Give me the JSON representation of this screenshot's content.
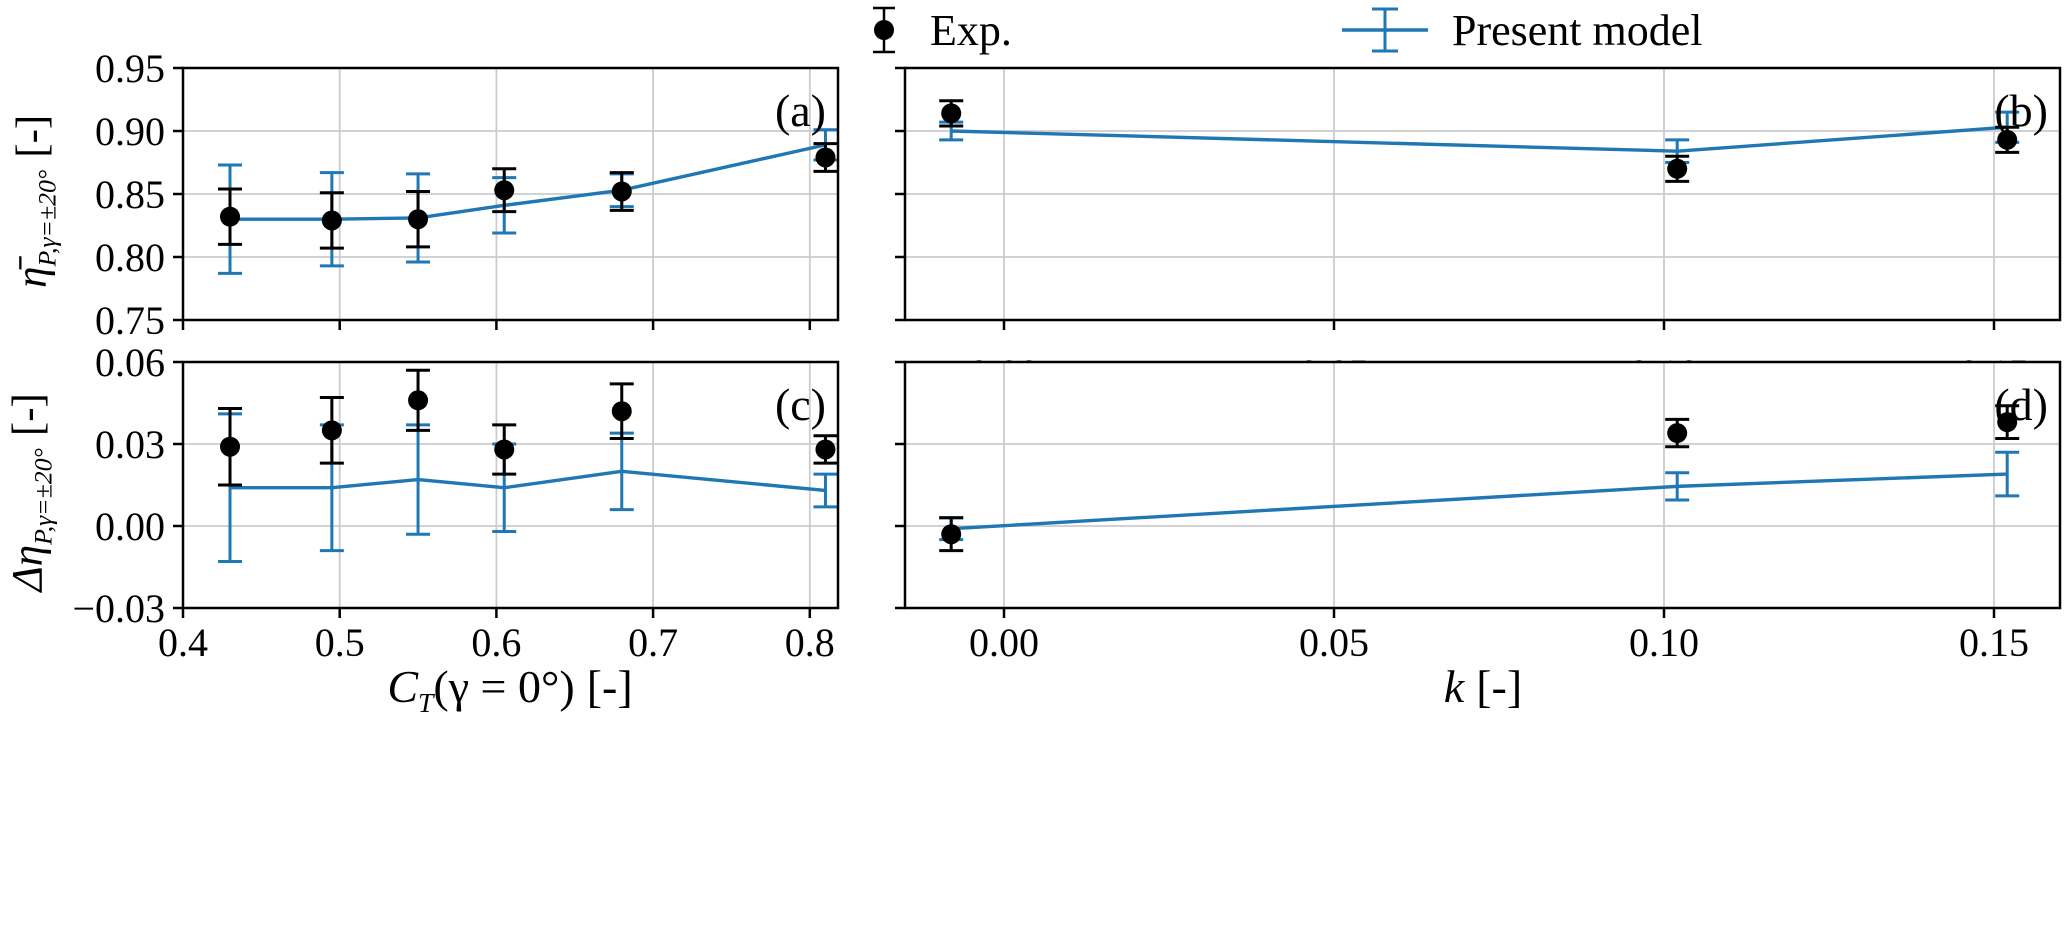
{
  "legend": {
    "exp_label": "Exp.",
    "model_label": "Present model"
  },
  "colors": {
    "exp_black": "#000000",
    "model_blue": "#1f77b4",
    "grid": "#cccccc",
    "spine": "#000000",
    "background": "#ffffff"
  },
  "axes": {
    "ylabel_top": {
      "symbol": "η̄",
      "subscript": "P,γ=±20°",
      "unit": "[-]"
    },
    "ylabel_bottom": {
      "symbol": "Δη",
      "subscript": "P,γ=±20°",
      "unit": "[-]"
    },
    "xlabel_left": {
      "symbol": "C",
      "subscript": "T",
      "rest": "(γ = 0°)",
      "unit": "[-]"
    },
    "xlabel_right": {
      "symbol": "k",
      "unit": "[-]"
    }
  },
  "chart_data": [
    {
      "id": "a",
      "type": "line",
      "panel_label": "(a)",
      "xlim": [
        0.4,
        0.818
      ],
      "ylim": [
        0.75,
        0.95
      ],
      "xticks": [
        0.4,
        0.5,
        0.6,
        0.7,
        0.8
      ],
      "xticklabels": [
        "0.4",
        "0.5",
        "0.6",
        "0.7",
        "0.8"
      ],
      "show_xticklabels": false,
      "yticks": [
        0.75,
        0.8,
        0.85,
        0.9,
        0.95
      ],
      "yticklabels": [
        "0.75",
        "0.80",
        "0.85",
        "0.90",
        "0.95"
      ],
      "show_yticklabels": true,
      "grid": true,
      "series": [
        {
          "name": "Present model",
          "style": "line-errorbar",
          "color": "#1f77b4",
          "x": [
            0.43,
            0.495,
            0.55,
            0.605,
            0.68,
            0.81
          ],
          "y": [
            0.83,
            0.83,
            0.831,
            0.841,
            0.853,
            0.889
          ],
          "yerr": [
            0.043,
            0.037,
            0.035,
            0.022,
            0.013,
            0.012
          ]
        },
        {
          "name": "Exp.",
          "style": "scatter-errorbar",
          "color": "#000000",
          "x": [
            0.43,
            0.495,
            0.55,
            0.605,
            0.68,
            0.81
          ],
          "y": [
            0.832,
            0.829,
            0.83,
            0.853,
            0.852,
            0.879
          ],
          "yerr": [
            0.022,
            0.022,
            0.022,
            0.017,
            0.015,
            0.011
          ]
        }
      ]
    },
    {
      "id": "b",
      "type": "line",
      "panel_label": "(b)",
      "xlim": [
        -0.015,
        0.16
      ],
      "ylim": [
        0.75,
        0.95
      ],
      "xticks": [
        0.0,
        0.05,
        0.1,
        0.15
      ],
      "xticklabels": [
        "0.00",
        "0.05",
        "0.10",
        "0.15"
      ],
      "show_xticklabels": false,
      "yticks": [
        0.75,
        0.8,
        0.85,
        0.9,
        0.95
      ],
      "yticklabels": [
        "0.75",
        "0.80",
        "0.85",
        "0.90",
        "0.95"
      ],
      "show_yticklabels": false,
      "grid": true,
      "series": [
        {
          "name": "Present model",
          "style": "line-errorbar",
          "color": "#1f77b4",
          "x": [
            -0.008,
            0.102,
            0.152
          ],
          "y": [
            0.9,
            0.884,
            0.903
          ],
          "yerr": [
            0.007,
            0.009,
            0.012
          ]
        },
        {
          "name": "Exp.",
          "style": "scatter-errorbar",
          "color": "#000000",
          "x": [
            -0.008,
            0.102,
            0.152
          ],
          "y": [
            0.914,
            0.87,
            0.893
          ],
          "yerr": [
            0.01,
            0.01,
            0.01
          ]
        }
      ]
    },
    {
      "id": "c",
      "type": "line",
      "panel_label": "(c)",
      "xlim": [
        0.4,
        0.818
      ],
      "ylim": [
        -0.03,
        0.06
      ],
      "xticks": [
        0.4,
        0.5,
        0.6,
        0.7,
        0.8
      ],
      "xticklabels": [
        "0.4",
        "0.5",
        "0.6",
        "0.7",
        "0.8"
      ],
      "show_xticklabels": true,
      "yticks": [
        -0.03,
        0.0,
        0.03,
        0.06
      ],
      "yticklabels": [
        "−0.03",
        "0.00",
        "0.03",
        "0.06"
      ],
      "show_yticklabels": true,
      "grid": true,
      "series": [
        {
          "name": "Present model",
          "style": "line-errorbar",
          "color": "#1f77b4",
          "x": [
            0.43,
            0.495,
            0.55,
            0.605,
            0.68,
            0.81
          ],
          "y": [
            0.014,
            0.014,
            0.017,
            0.014,
            0.02,
            0.013
          ],
          "yerr": [
            0.027,
            0.023,
            0.02,
            0.016,
            0.014,
            0.006
          ]
        },
        {
          "name": "Exp.",
          "style": "scatter-errorbar",
          "color": "#000000",
          "x": [
            0.43,
            0.495,
            0.55,
            0.605,
            0.68,
            0.81
          ],
          "y": [
            0.029,
            0.035,
            0.046,
            0.028,
            0.042,
            0.028
          ],
          "yerr": [
            0.014,
            0.012,
            0.011,
            0.009,
            0.01,
            0.005
          ]
        }
      ]
    },
    {
      "id": "d",
      "type": "line",
      "panel_label": "(d)",
      "xlim": [
        -0.015,
        0.16
      ],
      "ylim": [
        -0.03,
        0.06
      ],
      "xticks": [
        0.0,
        0.05,
        0.1,
        0.15
      ],
      "xticklabels": [
        "0.00",
        "0.05",
        "0.10",
        "0.15"
      ],
      "show_xticklabels": true,
      "yticks": [
        -0.03,
        0.0,
        0.03,
        0.06
      ],
      "yticklabels": [
        "−0.03",
        "0.00",
        "0.03",
        "0.06"
      ],
      "show_yticklabels": false,
      "grid": true,
      "series": [
        {
          "name": "Present model",
          "style": "line-errorbar",
          "color": "#1f77b4",
          "x": [
            -0.008,
            0.102,
            0.152
          ],
          "y": [
            -0.001,
            0.0145,
            0.019
          ],
          "yerr": [
            0.004,
            0.005,
            0.008
          ]
        },
        {
          "name": "Exp.",
          "style": "scatter-errorbar",
          "color": "#000000",
          "x": [
            -0.008,
            0.102,
            0.152
          ],
          "y": [
            -0.003,
            0.034,
            0.038
          ],
          "yerr": [
            0.006,
            0.005,
            0.006
          ]
        }
      ]
    }
  ]
}
